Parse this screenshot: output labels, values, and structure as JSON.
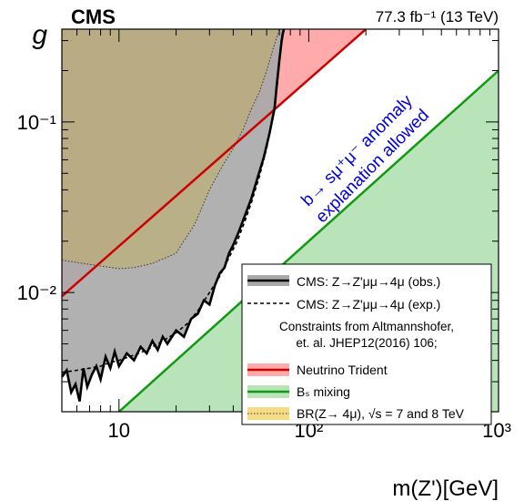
{
  "chart_data": {
    "type": "line",
    "experiment_label": "CMS",
    "lumi_label": "77.3 fb⁻¹ (13 TeV)",
    "xlabel": "m(Z')[GeV]",
    "ylabel": "g",
    "x_scale": "log",
    "y_scale": "log",
    "xlim": [
      5,
      1000
    ],
    "ylim": [
      0.002,
      0.35
    ],
    "x_major_ticks": [
      10,
      100,
      1000
    ],
    "y_major_ticks": [
      0.01,
      0.1
    ],
    "x_tick_labels": [
      "10",
      "10²",
      "10³"
    ],
    "y_tick_labels": [
      "10⁻²",
      "10⁻¹"
    ],
    "grid": false,
    "legend_position": "bottom-right",
    "annotation": {
      "lines": [
        "b→ sμ⁺μ⁻ anomaly",
        "explanation allowed"
      ],
      "color": "#0000dd"
    },
    "legend_entries": [
      {
        "text": "CMS: Z→Z'μμ→4μ (obs.)",
        "style": "obs"
      },
      {
        "text": "CMS: Z→Z'μμ→4μ (exp.)",
        "style": "exp"
      },
      {
        "text": "Constraints from Altmannshofer,",
        "style": "header"
      },
      {
        "text": "et. al. JHEP12(2016) 106;",
        "style": "header"
      },
      {
        "text": "Neutrino Trident",
        "style": "trident"
      },
      {
        "text": "Bₛ mixing",
        "style": "bs"
      },
      {
        "text": "BR(Z→ 4μ), √s = 7 and 8 TeV",
        "style": "br"
      }
    ],
    "series": [
      {
        "name": "CMS: Z→Z'μμ→4μ (obs.)",
        "color": "#000000",
        "x": [
          5,
          5.3,
          5.6,
          5.9,
          6.2,
          6.5,
          6.8,
          7.2,
          7.6,
          8,
          8.5,
          9,
          9.5,
          10,
          11,
          12,
          13,
          14,
          15,
          16,
          17,
          18,
          20,
          22,
          24,
          26,
          28,
          30,
          32,
          34,
          36,
          38,
          40,
          43,
          46,
          50,
          54,
          58,
          62,
          66,
          68,
          70,
          72,
          73,
          74
        ],
        "y": [
          0.0032,
          0.0035,
          0.0026,
          0.0029,
          0.0023,
          0.0036,
          0.0028,
          0.0033,
          0.0037,
          0.0031,
          0.0042,
          0.0036,
          0.0045,
          0.0037,
          0.0044,
          0.004,
          0.0048,
          0.0044,
          0.0052,
          0.0046,
          0.0055,
          0.005,
          0.006,
          0.0055,
          0.007,
          0.0075,
          0.009,
          0.0085,
          0.011,
          0.013,
          0.014,
          0.017,
          0.019,
          0.023,
          0.028,
          0.036,
          0.048,
          0.062,
          0.085,
          0.12,
          0.17,
          0.23,
          0.3,
          0.33,
          0.35
        ]
      },
      {
        "name": "CMS: Z→Z'μμ→4μ (exp.)",
        "color": "#000000",
        "x": [
          5,
          6,
          7,
          8,
          9,
          10,
          12,
          14,
          16,
          18,
          20,
          23,
          26,
          30,
          34,
          38,
          42,
          46,
          50,
          55,
          60,
          65,
          68,
          70,
          72,
          74
        ],
        "y": [
          0.0034,
          0.0035,
          0.0036,
          0.0037,
          0.0039,
          0.004,
          0.0043,
          0.0046,
          0.005,
          0.0054,
          0.0058,
          0.0066,
          0.0078,
          0.01,
          0.0125,
          0.016,
          0.02,
          0.026,
          0.034,
          0.048,
          0.07,
          0.11,
          0.16,
          0.22,
          0.29,
          0.35
        ]
      },
      {
        "name": "Neutrino Trident",
        "color": "#cc0000",
        "x": [
          5,
          200
        ],
        "y": [
          0.0095,
          0.35
        ]
      },
      {
        "name": "Bₛ mixing",
        "color": "#119911",
        "x": [
          10,
          1000
        ],
        "y": [
          0.002,
          0.2
        ]
      },
      {
        "name": "BR(Z→ 4μ), √s = 7 and 8 TeV",
        "color": "#333333",
        "x": [
          5,
          6,
          8,
          10,
          12,
          15,
          20,
          25,
          30,
          35,
          40,
          45,
          50,
          55,
          60,
          65,
          70
        ],
        "y": [
          0.0155,
          0.015,
          0.0143,
          0.0138,
          0.014,
          0.0148,
          0.017,
          0.025,
          0.04,
          0.055,
          0.07,
          0.09,
          0.12,
          0.15,
          0.2,
          0.27,
          0.35
        ]
      }
    ]
  }
}
